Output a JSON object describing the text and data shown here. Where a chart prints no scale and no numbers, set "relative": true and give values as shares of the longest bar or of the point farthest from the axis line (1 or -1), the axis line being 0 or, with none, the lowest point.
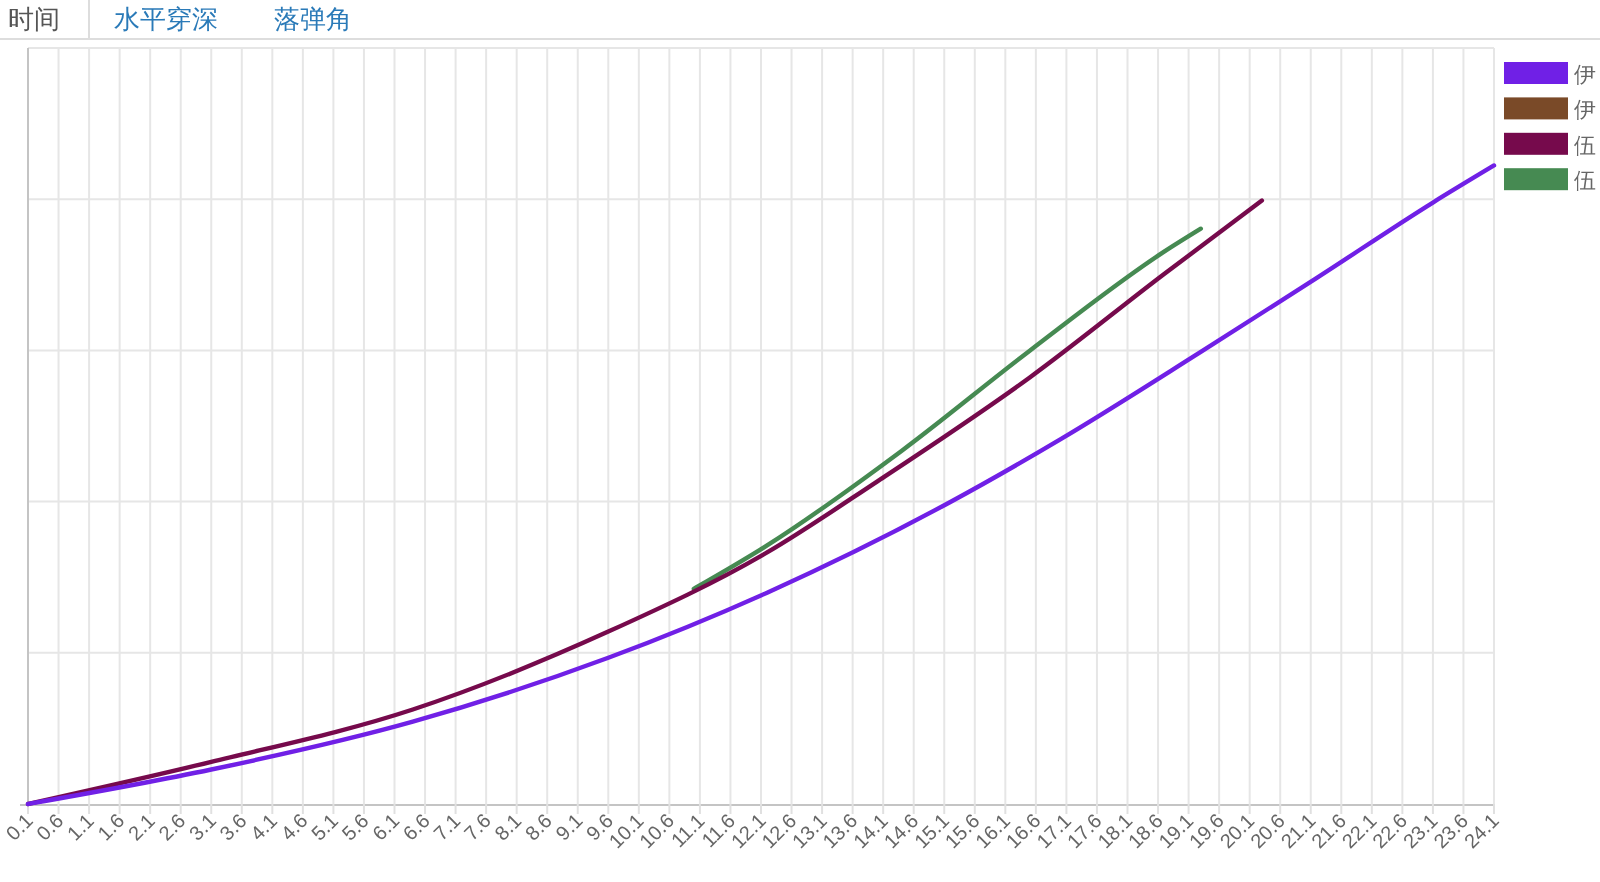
{
  "chart_data": {
    "type": "line",
    "relative": true,
    "annotations": [
      "时间",
      "水平穿深",
      "落弹角"
    ],
    "xlim": [
      0.1,
      24.1
    ],
    "xticks": [
      0.1,
      0.6,
      1.1,
      1.6,
      2.1,
      2.6,
      3.1,
      3.6,
      4.1,
      4.6,
      5.1,
      5.6,
      6.1,
      6.6,
      7.1,
      7.6,
      8.1,
      8.6,
      9.1,
      9.6,
      10.1,
      10.6,
      11.1,
      11.6,
      12.1,
      12.6,
      13.1,
      13.6,
      14.1,
      14.6,
      15.1,
      15.6,
      16.1,
      16.6,
      17.1,
      17.6,
      18.1,
      18.6,
      19.1,
      19.6,
      20.1,
      20.6,
      21.1,
      21.6,
      22.1,
      22.6,
      23.1,
      23.6,
      24.1
    ],
    "grid": true,
    "legend": "top right",
    "series": [
      {
        "name": "伊",
        "color": "#7020e6",
        "x": [
          0.1,
          3.1,
          6.4,
          9.6,
          12.2,
          15.2,
          17.0,
          19.3,
          21.2,
          23.1,
          24.1
        ],
        "values": [
          0,
          0.054,
          0.129,
          0.229,
          0.331,
          0.473,
          0.571,
          0.708,
          0.824,
          0.942,
          1
        ]
      },
      {
        "name": "伊",
        "color": "#7a4a28"
      },
      {
        "name": "伍",
        "color": "#760a4c",
        "x": [
          0.1,
          3.1,
          6.4,
          9.6,
          12.2,
          14.0,
          16.5,
          18.7,
          20.3
        ],
        "values": [
          0,
          0.066,
          0.148,
          0.27,
          0.394,
          0.505,
          0.668,
          0.83,
          0.945
        ]
      },
      {
        "name": "伍",
        "color": "#468a52",
        "x": [
          11.0,
          12.2,
          14.4,
          16.5,
          18.7,
          19.3
        ],
        "values": [
          0.337,
          0.405,
          0.553,
          0.71,
          0.865,
          0.901
        ]
      }
    ]
  }
}
